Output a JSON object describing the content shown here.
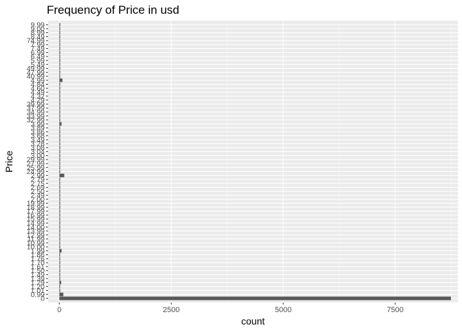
{
  "chart_data": {
    "type": "bar",
    "orientation": "horizontal",
    "title": "Frequency of Price in usd",
    "xlabel": "count",
    "ylabel": "Price",
    "xlim": [
      -250,
      8900
    ],
    "xticks": [
      0,
      2500,
      5000,
      7500
    ],
    "grid": true,
    "bar_color": "#595959",
    "panel_color": "#ebebeb",
    "categories": [
      "0",
      "0.99",
      "1.01",
      "1.20",
      "1.29",
      "1.39",
      "1.49",
      "1.50",
      "1.61",
      "1.70",
      "1.76",
      "1.86",
      "1.99",
      "10.00",
      "10.99",
      "11.99",
      "12.99",
      "13.99",
      "14.00",
      "14.99",
      "15.99",
      "16.99",
      "17.99",
      "18.99",
      "19.99",
      "2.00",
      "2.49",
      "2.50",
      "2.69",
      "2.75",
      "2.79",
      "2.99",
      "24.99",
      "25.99",
      "27.99",
      "29.99",
      "3.00",
      "3.04",
      "3.08",
      "3.28",
      "3.49",
      "3.68",
      "3.86",
      "3.89",
      "3.99",
      "32.99",
      "33.99",
      "34.99",
      "37.99",
      "39.99",
      "4.29",
      "4.32",
      "4.49",
      "4.60",
      "4.84",
      "4.99",
      "40.99",
      "47.99",
      "49.99",
      "5.49",
      "5.99",
      "6.49",
      "6.99",
      "7.49",
      "7.99",
      "74.99",
      "8.49",
      "8.99",
      "9.00",
      "9.99"
    ],
    "values": [
      8745,
      90,
      5,
      5,
      40,
      5,
      5,
      5,
      5,
      5,
      5,
      5,
      50,
      5,
      5,
      5,
      5,
      5,
      5,
      5,
      5,
      5,
      5,
      5,
      5,
      5,
      5,
      5,
      5,
      5,
      5,
      110,
      5,
      5,
      5,
      5,
      5,
      5,
      5,
      5,
      5,
      5,
      5,
      5,
      50,
      5,
      5,
      5,
      5,
      5,
      5,
      5,
      5,
      5,
      5,
      70,
      5,
      5,
      5,
      5,
      20,
      5,
      5,
      5,
      5,
      5,
      5,
      5,
      5,
      20
    ]
  }
}
